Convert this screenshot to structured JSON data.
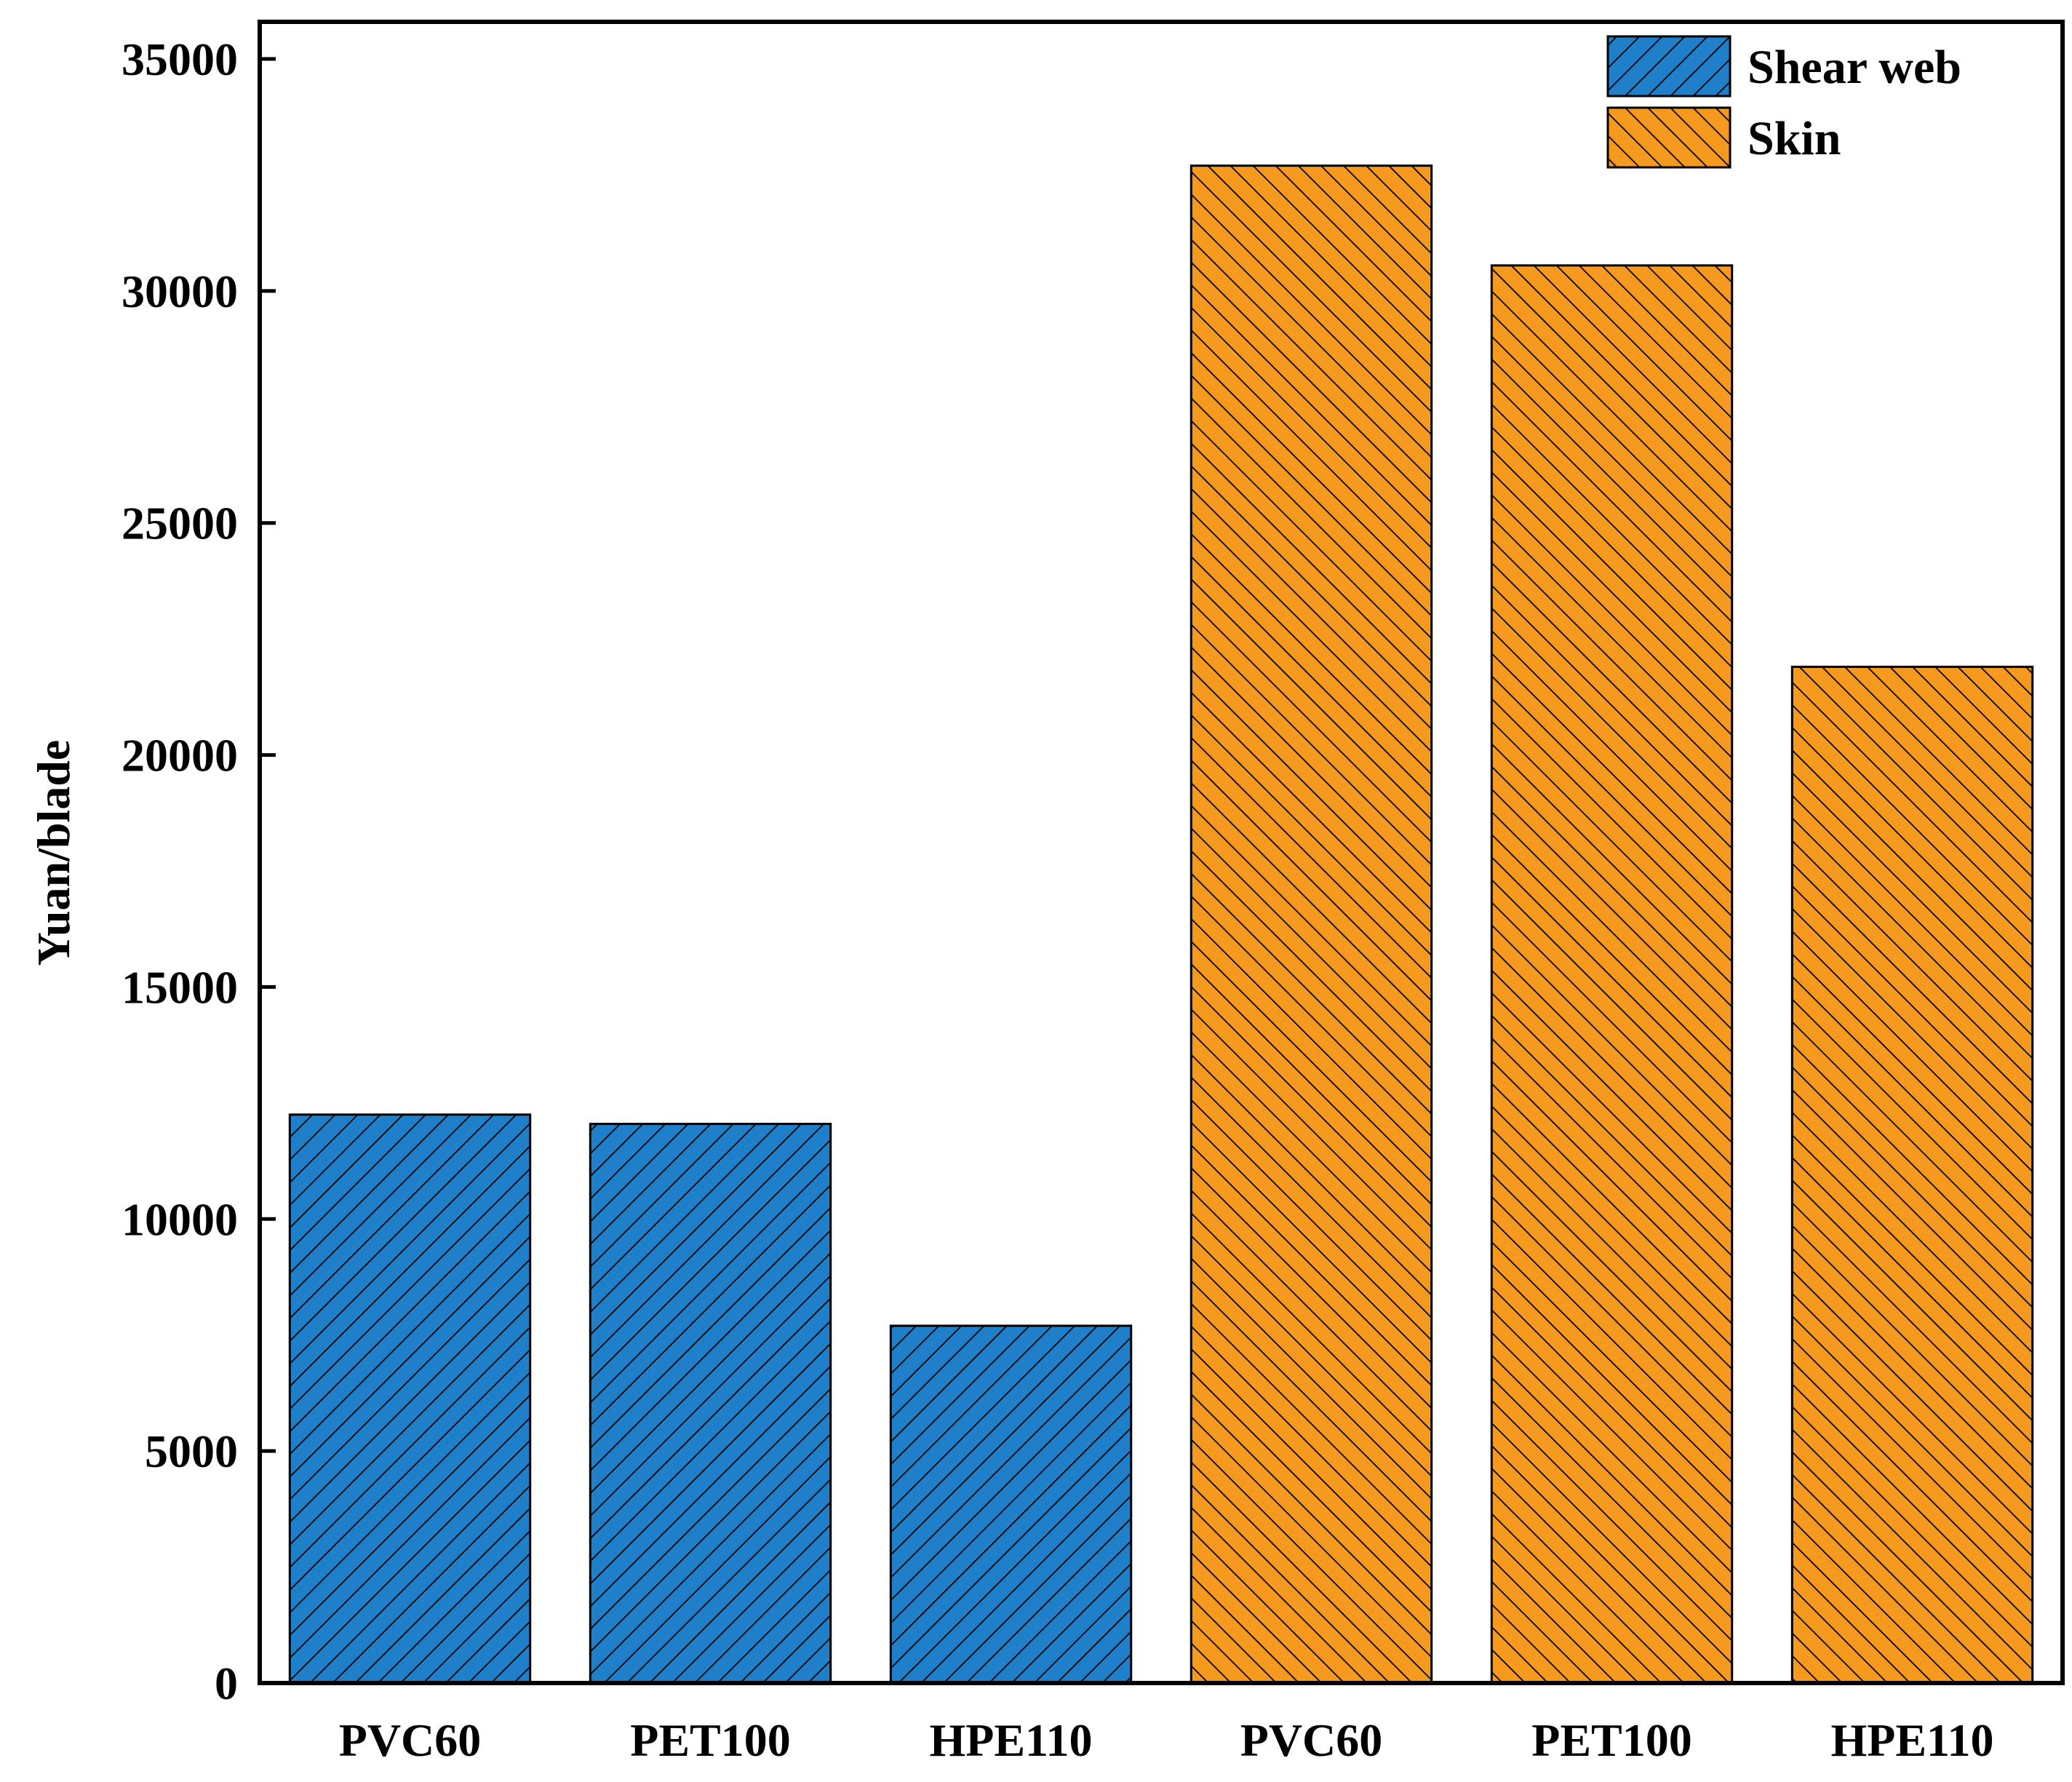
{
  "chart_data": {
    "type": "bar",
    "categories": [
      "PVC60",
      "PET100",
      "HPE110",
      "PVC60",
      "PET100",
      "HPE110"
    ],
    "series": [
      {
        "name": "Shear web",
        "color": "#1f7fc8",
        "hatch": "forward-diagonal",
        "bars": [
          {
            "category_index": 0,
            "value": 12250
          },
          {
            "category_index": 1,
            "value": 12050
          },
          {
            "category_index": 2,
            "value": 7700
          }
        ]
      },
      {
        "name": "Skin",
        "color": "#f59a1e",
        "hatch": "back-diagonal",
        "bars": [
          {
            "category_index": 3,
            "value": 32700
          },
          {
            "category_index": 4,
            "value": 30550
          },
          {
            "category_index": 5,
            "value": 21900
          }
        ]
      }
    ],
    "xlabel": "",
    "ylabel": "Yuan/blade",
    "ylim": [
      0,
      35800
    ],
    "yticks": [
      0,
      5000,
      10000,
      15000,
      20000,
      25000,
      30000,
      35000
    ],
    "legend_position": "top-right",
    "grid": false
  }
}
